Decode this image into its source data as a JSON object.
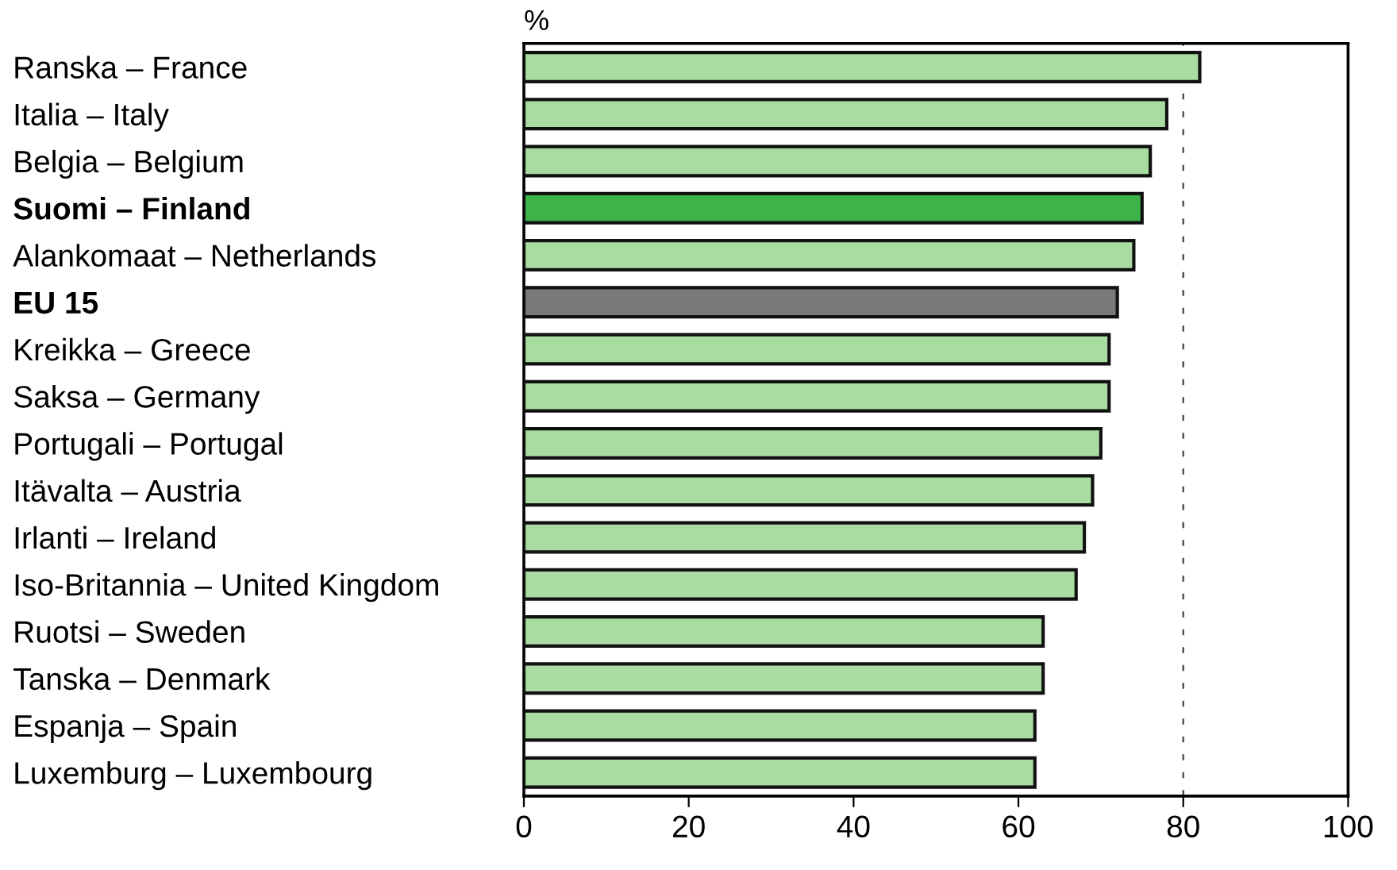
{
  "chart_data": {
    "type": "bar",
    "orientation": "horizontal",
    "title": "%",
    "categories": [
      "Ranska – France",
      "Italia – Italy",
      "Belgia – Belgium",
      "Suomi – Finland",
      "Alankomaat – Netherlands",
      "EU 15",
      "Kreikka – Greece",
      "Saksa – Germany",
      "Portugali – Portugal",
      "Itävalta – Austria",
      "Irlanti – Ireland",
      "Iso-Britannia – United Kingdom",
      "Ruotsi – Sweden",
      "Tanska – Denmark",
      "Espanja – Spain",
      "Luxemburg – Luxembourg"
    ],
    "values": [
      82,
      78,
      76,
      75,
      74,
      72,
      71,
      71,
      70,
      69,
      68,
      67,
      63,
      63,
      62,
      62
    ],
    "colors": [
      "#a8dca0",
      "#a8dca0",
      "#a8dca0",
      "#3cb44a",
      "#a8dca0",
      "#7a7a7a",
      "#a8dca0",
      "#a8dca0",
      "#a8dca0",
      "#a8dca0",
      "#a8dca0",
      "#a8dca0",
      "#a8dca0",
      "#a8dca0",
      "#a8dca0",
      "#a8dca0"
    ],
    "xlim": [
      0,
      100
    ],
    "xticks": [
      0,
      20,
      40,
      60,
      80,
      100
    ],
    "ref_lines": [
      {
        "axis": "x",
        "value": 80,
        "line_style": "dashed"
      }
    ]
  }
}
